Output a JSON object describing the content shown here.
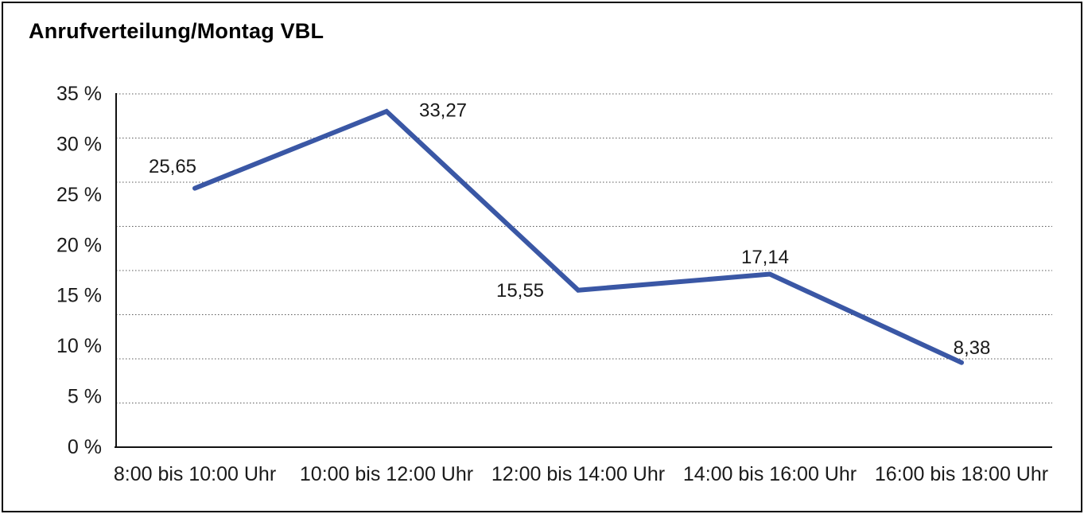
{
  "title": "Anrufverteilung/Montag VBL",
  "colors": {
    "line": "#3A57A5",
    "text": "#1A1A1A",
    "grid": "#5A5A5A",
    "axis": "#111111",
    "background": "#FFFFFF",
    "border": "#000000"
  },
  "chart_data": {
    "type": "line",
    "title": "Anrufverteilung/Montag VBL",
    "categories": [
      "8:00 bis 10:00 Uhr",
      "10:00 bis 12:00 Uhr",
      "12:00 bis 14:00 Uhr",
      "14:00 bis 16:00 Uhr",
      "16:00 bis 18:00 Uhr"
    ],
    "values": [
      25.65,
      33.27,
      15.55,
      17.14,
      8.38
    ],
    "point_labels": [
      "25,65",
      "33,27",
      "15,55",
      "17,14",
      "8,38"
    ],
    "unit": "%",
    "xlabel": "",
    "ylabel": "",
    "ylim": [
      0,
      35
    ],
    "y_ticks": [
      {
        "value": 35,
        "label": "35 %"
      },
      {
        "value": 30,
        "label": "30 %"
      },
      {
        "value": 25,
        "label": "25 %"
      },
      {
        "value": 20,
        "label": "20 %"
      },
      {
        "value": 15,
        "label": "15 %"
      },
      {
        "value": 10,
        "label": "10 %"
      },
      {
        "value": 5,
        "label": "5 %"
      },
      {
        "value": 0,
        "label": "0 %"
      }
    ],
    "grid": "horizontal-dotted",
    "gridline_count": 9,
    "legend": "none"
  }
}
